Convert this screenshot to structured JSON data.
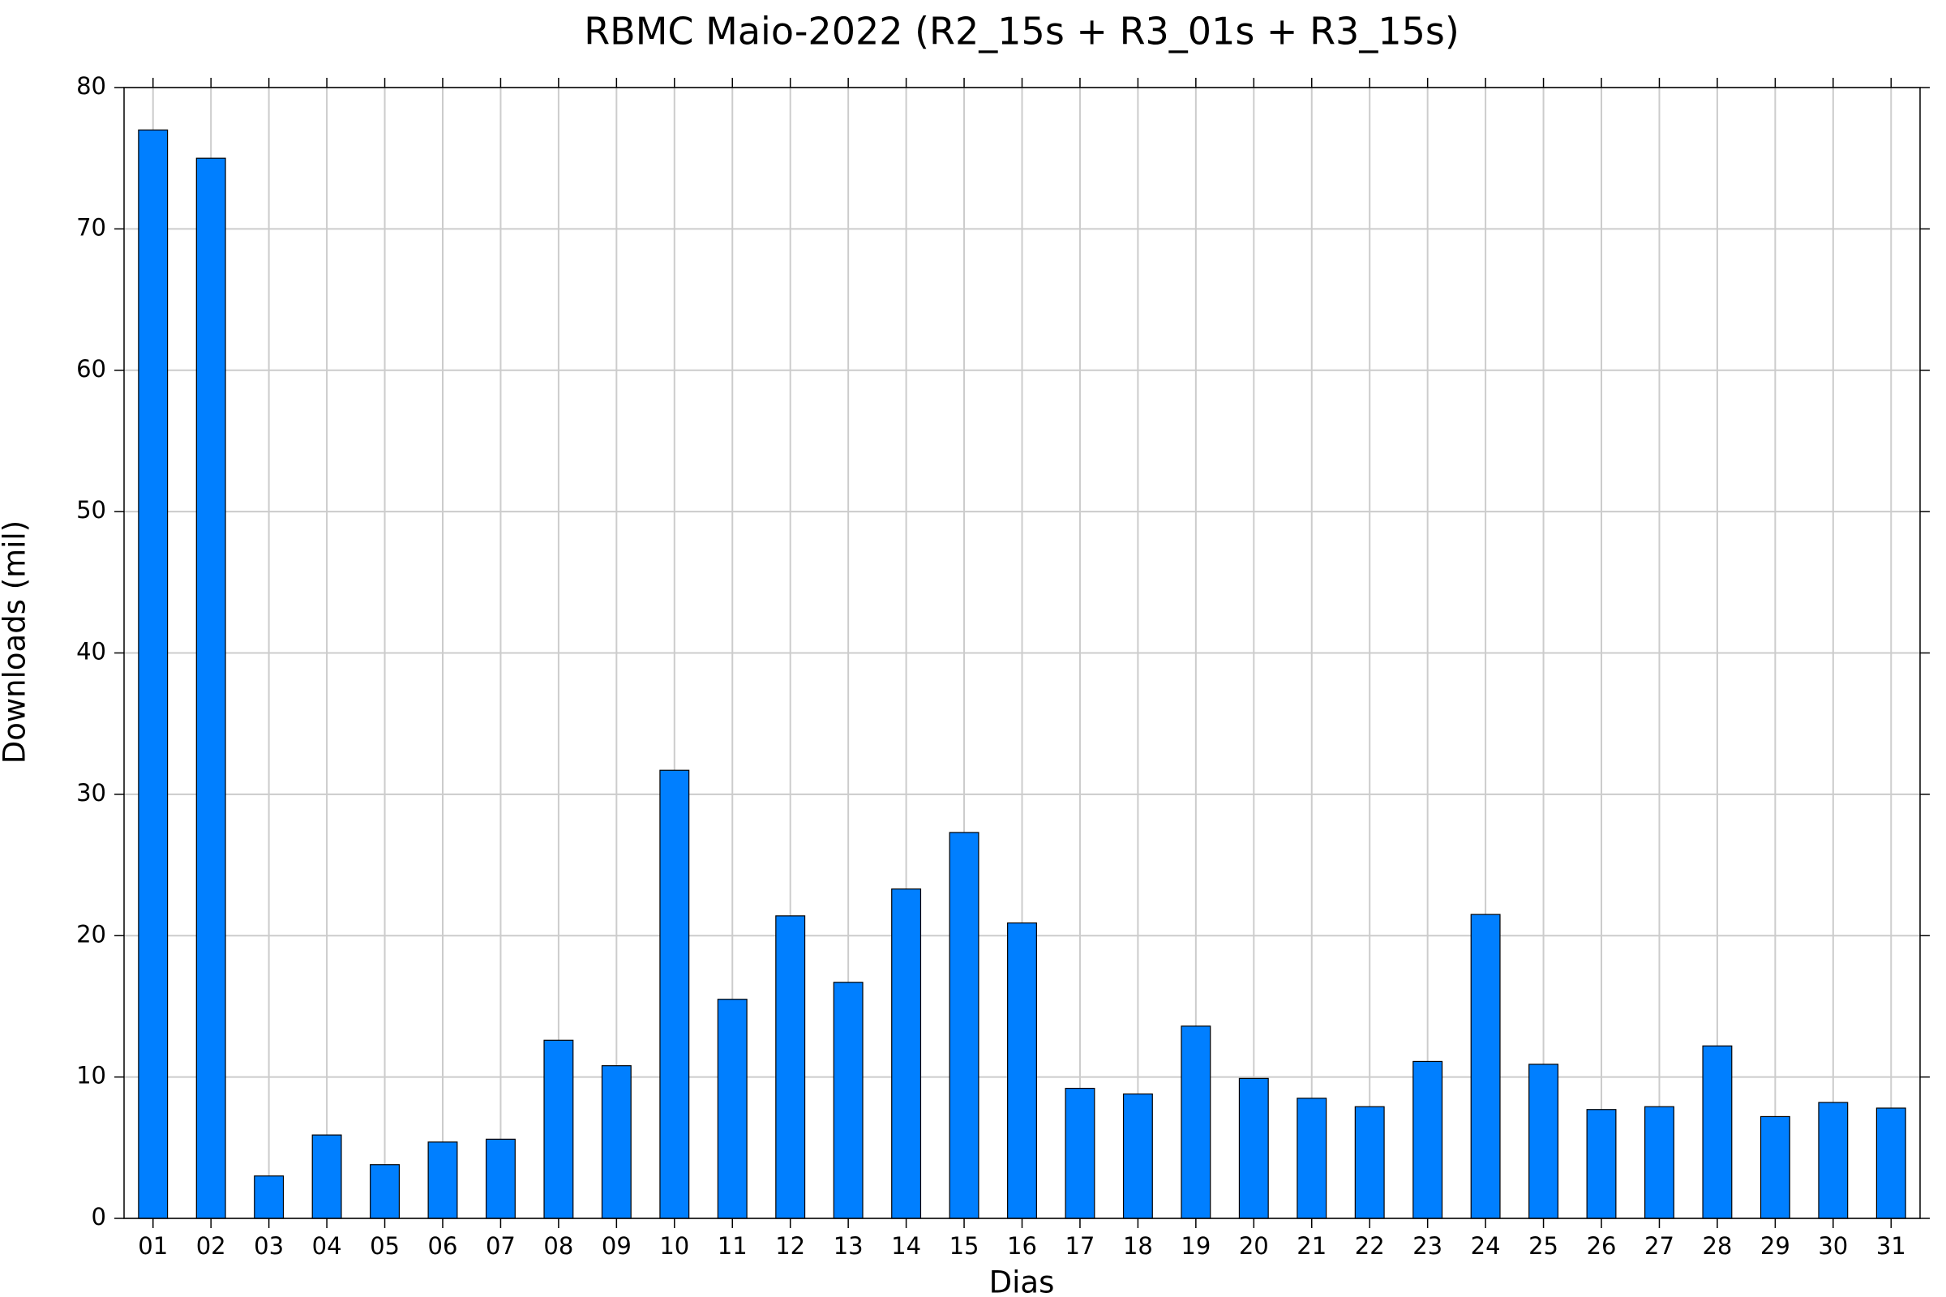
{
  "chart_data": {
    "type": "bar",
    "title": "RBMC Maio-2022 (R2_15s + R3_01s + R3_15s)",
    "x_label": "Dias",
    "y_label": "Downloads (mil)",
    "categories": [
      "01",
      "02",
      "03",
      "04",
      "05",
      "06",
      "07",
      "08",
      "09",
      "10",
      "11",
      "12",
      "13",
      "14",
      "15",
      "16",
      "17",
      "18",
      "19",
      "20",
      "21",
      "22",
      "23",
      "24",
      "25",
      "26",
      "27",
      "28",
      "29",
      "30",
      "31"
    ],
    "values": [
      77.0,
      75.0,
      3.0,
      5.9,
      3.8,
      5.4,
      5.6,
      12.6,
      10.8,
      31.7,
      15.5,
      21.4,
      16.7,
      23.3,
      27.3,
      20.9,
      9.2,
      8.8,
      13.6,
      9.9,
      8.5,
      7.9,
      11.1,
      21.5,
      10.9,
      7.7,
      7.9,
      12.2,
      7.2,
      8.2,
      7.8
    ],
    "color": "#007fff",
    "ylim": [
      0,
      80
    ],
    "yticks": [
      0,
      10,
      20,
      30,
      40,
      50,
      60,
      70,
      80
    ],
    "grid": true
  }
}
